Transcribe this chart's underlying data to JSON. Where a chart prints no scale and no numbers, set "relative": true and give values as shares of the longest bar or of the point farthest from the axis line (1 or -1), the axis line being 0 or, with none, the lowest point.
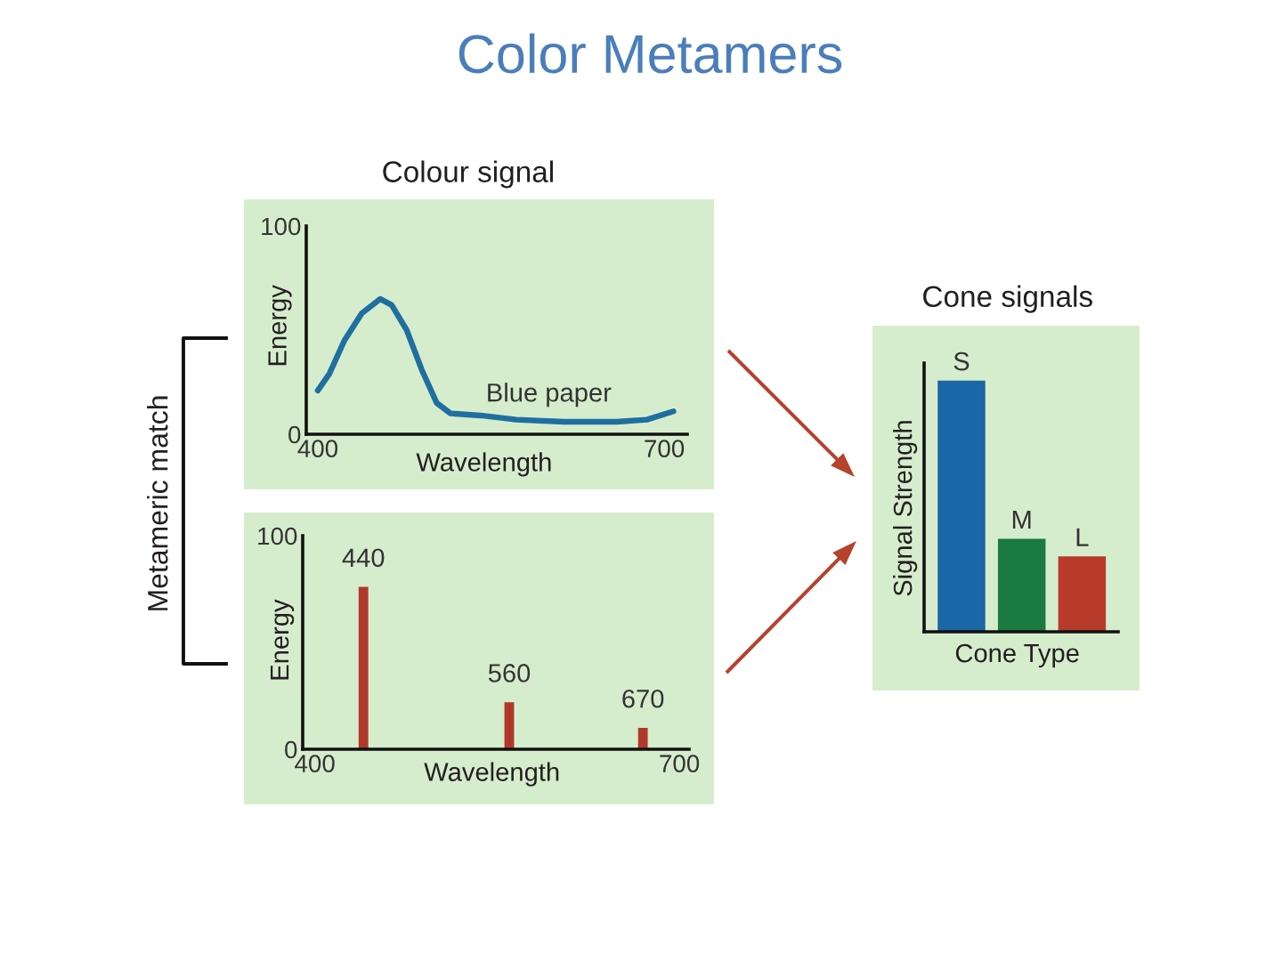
{
  "chart_data": [
    {
      "type": "other",
      "title": "Color Metamers",
      "annotations": [
        "Metameric match"
      ]
    },
    {
      "type": "line",
      "title": "Colour signal",
      "xlabel": "Wavelength",
      "ylabel": "Energy",
      "x": [
        400,
        410,
        423,
        438,
        454,
        464,
        477,
        490,
        503,
        515,
        541,
        572,
        613,
        659,
        685,
        708
      ],
      "series": [
        {
          "color": "#1f6fa0",
          "values": [
            21,
            29,
            45,
            58,
            65,
            62,
            50,
            31,
            15,
            10,
            9,
            7,
            6,
            6,
            7,
            11
          ]
        }
      ],
      "xlim": [
        390,
        720
      ],
      "xticks": [
        400,
        700
      ],
      "ylim": [
        0,
        100
      ],
      "yticks": [
        0,
        100
      ],
      "annotations": [
        {
          "text": "Blue paper",
          "x": 600,
          "y": 6
        }
      ]
    },
    {
      "type": "bar",
      "xlabel": "Wavelength",
      "ylabel": "Energy",
      "x": [
        440,
        560,
        670
      ],
      "values": [
        76,
        22,
        10
      ],
      "color": "#b0392b",
      "xlim": [
        390,
        708
      ],
      "xticks": [
        400,
        700
      ],
      "ylim": [
        0,
        100
      ],
      "yticks": [
        0,
        100
      ],
      "annotations": [
        {
          "text": "440",
          "x": 440,
          "y": 76
        },
        {
          "text": "560",
          "x": 560,
          "y": 22
        },
        {
          "text": "670",
          "x": 670,
          "y": 10
        }
      ]
    },
    {
      "type": "bar",
      "title": "Cone signals",
      "xlabel": "Cone Type",
      "ylabel": "Signal Strength",
      "categories": [
        "S",
        "M",
        "L"
      ],
      "values": [
        1,
        0.37,
        0.3
      ],
      "colors": [
        "#1a66a6",
        "#1a7a40",
        "#b83a2a"
      ],
      "relative": true
    }
  ]
}
